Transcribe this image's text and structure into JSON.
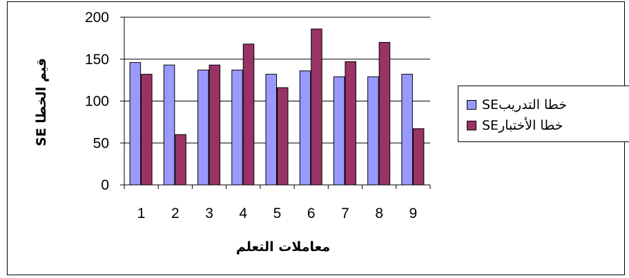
{
  "chart_data": {
    "type": "bar",
    "categories": [
      "1",
      "2",
      "3",
      "4",
      "5",
      "6",
      "7",
      "8",
      "9"
    ],
    "series": [
      {
        "name": "SEخطا التدريب",
        "color": "#9999ff",
        "values": [
          146,
          143,
          137,
          137,
          132,
          136,
          129,
          129,
          132
        ]
      },
      {
        "name": "SEخطا الأختبار",
        "color": "#993366",
        "values": [
          132,
          60,
          143,
          168,
          116,
          186,
          147,
          170,
          67
        ]
      }
    ],
    "xlabel": "معاملات التعلم",
    "ylabel": "SE قيم الخطا",
    "ylim": [
      0,
      200
    ],
    "yticks": [
      0,
      50,
      100,
      150,
      200
    ],
    "grid": true,
    "legend": "right"
  }
}
